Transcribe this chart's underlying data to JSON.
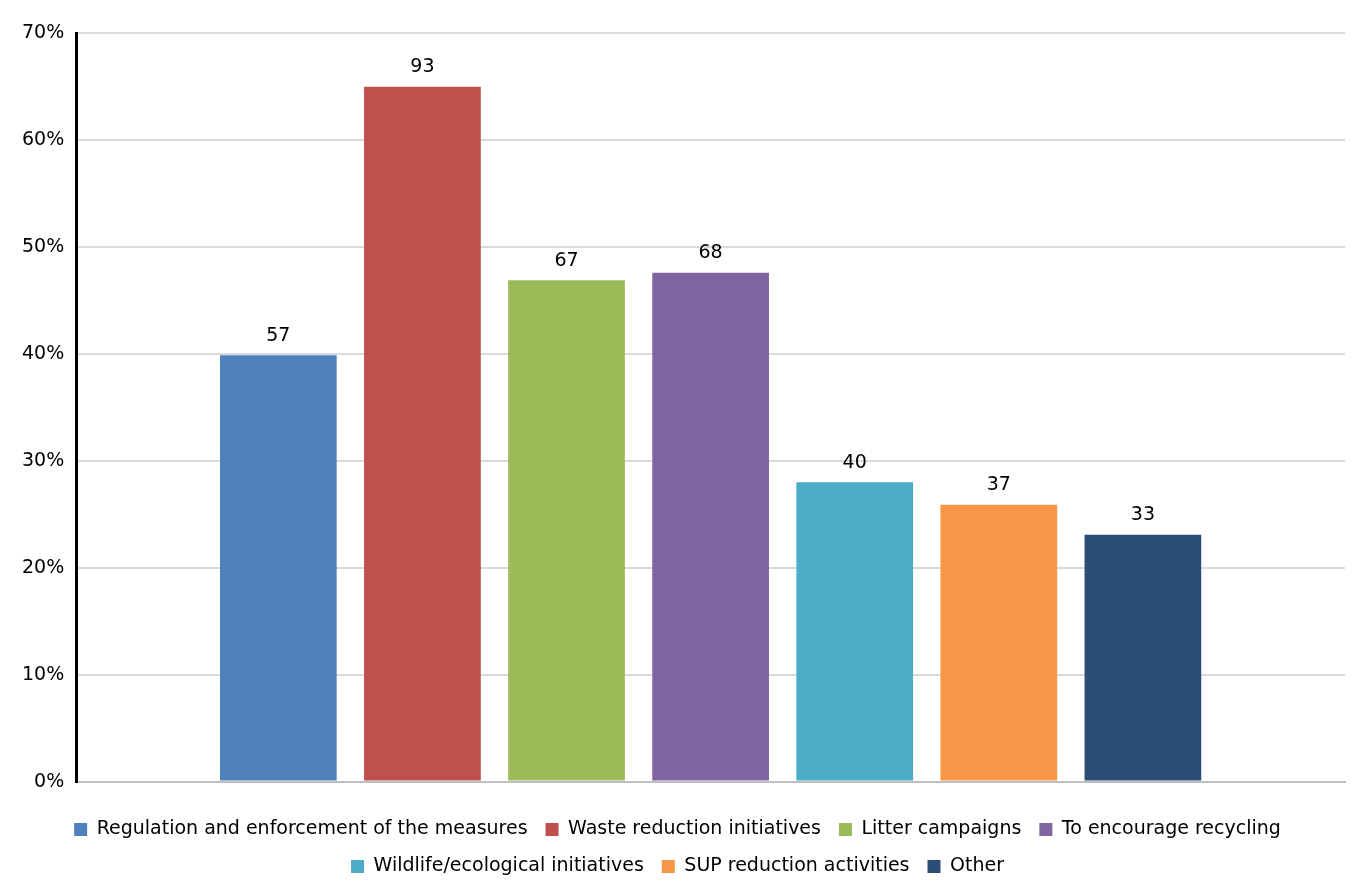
{
  "chart_data": {
    "type": "bar",
    "categories": [
      null
    ],
    "ylim": [
      0,
      70
    ],
    "yticks": [
      {
        "value": 0,
        "label": "0%"
      },
      {
        "value": 10,
        "label": "10%"
      },
      {
        "value": 20,
        "label": "20%"
      },
      {
        "value": 30,
        "label": "30%"
      },
      {
        "value": 40,
        "label": "40%"
      },
      {
        "value": 50,
        "label": "50%"
      },
      {
        "value": 60,
        "label": "60%"
      },
      {
        "value": 70,
        "label": "70%"
      }
    ],
    "grid": "y",
    "legend": "bottom",
    "annotations": [
      {
        "text": "57",
        "y": 39.9
      },
      {
        "text": "93",
        "y": 65.0
      },
      {
        "text": "67",
        "y": 46.9
      },
      {
        "text": "68",
        "y": 47.6
      },
      {
        "text": "40",
        "y": 28.0
      },
      {
        "text": "37",
        "y": 25.9
      },
      {
        "text": "33",
        "y": 23.1
      }
    ],
    "series": [
      {
        "name": "Regulation and enforcement of the measures",
        "color": "#4f81bd",
        "values": [
          39.9
        ]
      },
      {
        "name": "Waste reduction initiatives",
        "color": "#c0504d",
        "values": [
          65.0
        ]
      },
      {
        "name": "Litter campaigns",
        "color": "#9bbb59",
        "values": [
          46.9
        ]
      },
      {
        "name": "To encourage recycling",
        "color": "#8064a2",
        "values": [
          47.6
        ]
      },
      {
        "name": "Wildlife/ecological initiatives",
        "color": "#4bacc6",
        "values": [
          28.0
        ]
      },
      {
        "name": "SUP reduction activities",
        "color": "#f79646",
        "values": [
          25.9
        ]
      },
      {
        "name": "Other",
        "color": "#2c4d75",
        "values": [
          23.1
        ]
      }
    ]
  }
}
